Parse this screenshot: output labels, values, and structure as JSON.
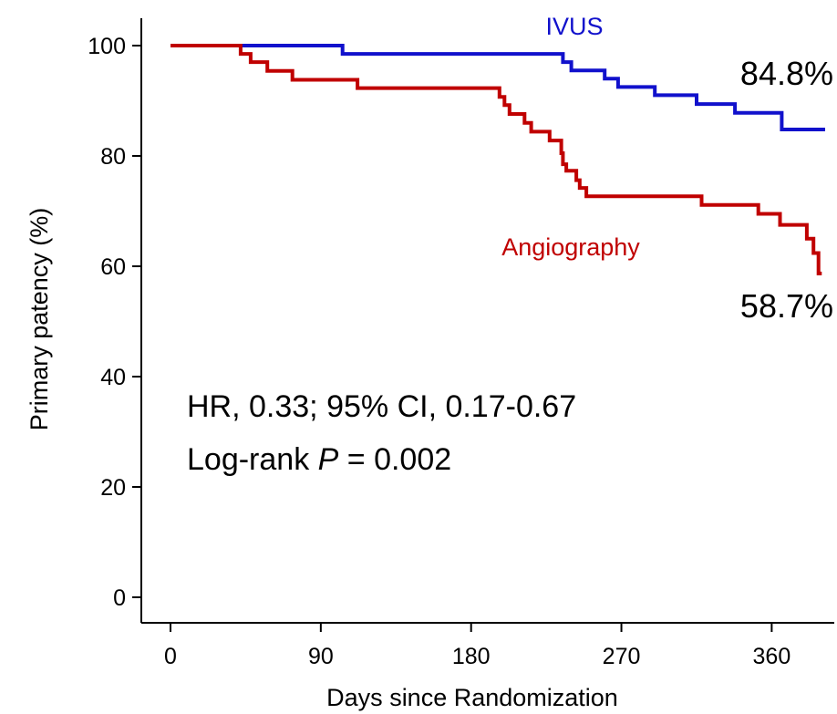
{
  "chart_data": {
    "type": "line",
    "step": true,
    "title": "",
    "xlabel": "Days since Randomization",
    "ylabel": "Primary patency (%)",
    "xlim": [
      0,
      392
    ],
    "ylim": [
      0,
      100
    ],
    "x_ticks": [
      0,
      90,
      180,
      270,
      360
    ],
    "y_ticks": [
      0,
      20,
      40,
      60,
      80,
      100
    ],
    "grid": false,
    "legend": "none (series labeled directly on plot)",
    "series": [
      {
        "name": "IVUS",
        "color": "#1111cc",
        "end_label": "84.8%",
        "points": [
          [
            0,
            100
          ],
          [
            103,
            98.5
          ],
          [
            235,
            97
          ],
          [
            240,
            95.5
          ],
          [
            260,
            94
          ],
          [
            268,
            92.5
          ],
          [
            290,
            91
          ],
          [
            315,
            89.4
          ],
          [
            338,
            87.8
          ],
          [
            366,
            84.8
          ],
          [
            392,
            84.8
          ]
        ]
      },
      {
        "name": "Angiography",
        "color": "#c00000",
        "end_label": "58.7%",
        "points": [
          [
            0,
            100
          ],
          [
            42,
            98.5
          ],
          [
            48,
            97
          ],
          [
            58,
            95.4
          ],
          [
            73,
            93.8
          ],
          [
            112,
            92.3
          ],
          [
            197,
            90.7
          ],
          [
            200,
            89.2
          ],
          [
            203,
            87.6
          ],
          [
            212,
            86
          ],
          [
            216,
            84.4
          ],
          [
            227,
            82.8
          ],
          [
            234,
            80.5
          ],
          [
            235,
            78.5
          ],
          [
            237,
            77.3
          ],
          [
            243,
            75.6
          ],
          [
            245,
            74.2
          ],
          [
            249,
            72.7
          ],
          [
            318,
            71.1
          ],
          [
            352,
            69.5
          ],
          [
            365,
            67.5
          ],
          [
            381,
            65
          ],
          [
            385,
            62.4
          ],
          [
            388,
            58.7
          ],
          [
            390,
            58.7
          ]
        ]
      }
    ],
    "annotations": [
      {
        "text": "HR, 0.33; 95% CI, 0.17-0.67"
      },
      {
        "text_prefix": "Log-rank ",
        "text_italic": "P",
        "text_suffix": " = 0.002"
      }
    ]
  }
}
